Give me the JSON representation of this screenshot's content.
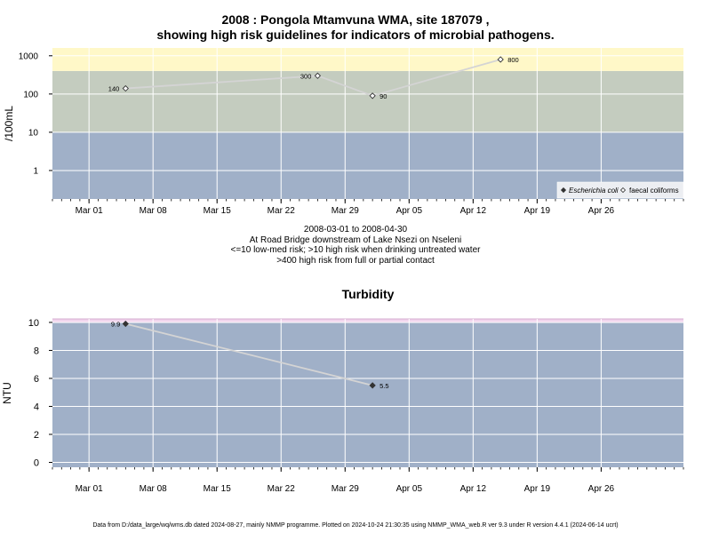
{
  "header": {
    "title_line1": "2008 : Pongola Mtamvuna WMA, site 187079 ,",
    "title_line2": "showing high risk guidelines for indicators of microbial pathogens."
  },
  "microbial_caption": {
    "line1": "2008-03-01 to 2008-04-30",
    "line2": "At Road Bridge downstream of Lake Nsezi on Nseleni",
    "line3": "<=10 low-med risk; >10 high risk when drinking untreated water",
    "line4": ">400 high risk from full or partial contact"
  },
  "footer": {
    "text": "Data from D:/data_large/wq/wms.db dated 2024-08-27, mainly NMMP programme. Plotted on 2024-10-24 21:30:35 using NMMP_WMA_web.R ver 9.3 under R version 4.4.1 (2024-06-14 ucrt)"
  },
  "colors": {
    "band_low": "#a0b0c8",
    "band_high": "#c4ccbf",
    "band_contact": "#fff8c8",
    "turbidity_band": "#a0b0c8",
    "turbidity_top_band": "#f2d6ee",
    "grid": "#ffffff",
    "line": "#d4d4d4"
  },
  "chart_data": [
    {
      "type": "line",
      "ylabel": "/100mL",
      "yscale": "log",
      "ylim": [
        0.18,
        1600
      ],
      "yticks": [
        1,
        10,
        100,
        1000
      ],
      "ytick_labels": [
        "1",
        "10",
        "100",
        "1000"
      ],
      "xlim": [
        "2008-02-26",
        "2008-05-05"
      ],
      "xticks": [
        "2008-03-01",
        "2008-03-08",
        "2008-03-15",
        "2008-03-22",
        "2008-03-29",
        "2008-04-05",
        "2008-04-12",
        "2008-04-19",
        "2008-04-26"
      ],
      "xtick_labels": [
        "Mar 01",
        "Mar 08",
        "Mar 15",
        "Mar 22",
        "Mar 29",
        "Apr 05",
        "Apr 12",
        "Apr 19",
        "Apr 26"
      ],
      "grid": true,
      "risk_bands": [
        {
          "from": 0.18,
          "to": 10
        },
        {
          "from": 10,
          "to": 400
        },
        {
          "from": 400,
          "to": 1600
        }
      ],
      "legend_position": "bottom-right",
      "series": [
        {
          "name": "Escherichia coli",
          "marker": "filled-diamond",
          "x": [],
          "y": []
        },
        {
          "name": "faecal coliforms",
          "marker": "open-diamond",
          "x": [
            "2008-03-05",
            "2008-03-26",
            "2008-04-01",
            "2008-04-15"
          ],
          "y": [
            140,
            300,
            90,
            800
          ],
          "labels": [
            "140",
            "300",
            "90",
            "800"
          ]
        }
      ]
    },
    {
      "type": "line",
      "title": "Turbidity",
      "ylabel": "NTU",
      "ylim": [
        -0.35,
        10.25
      ],
      "yticks": [
        0,
        2,
        4,
        6,
        8,
        10
      ],
      "ytick_labels": [
        "0",
        "2",
        "4",
        "6",
        "8",
        "10"
      ],
      "xlim": [
        "2008-02-26",
        "2008-05-05"
      ],
      "xticks": [
        "2008-03-01",
        "2008-03-08",
        "2008-03-15",
        "2008-03-22",
        "2008-03-29",
        "2008-04-05",
        "2008-04-12",
        "2008-04-19",
        "2008-04-26"
      ],
      "xtick_labels": [
        "Mar 01",
        "Mar 08",
        "Mar 15",
        "Mar 22",
        "Mar 29",
        "Apr 05",
        "Apr 12",
        "Apr 19",
        "Apr 26"
      ],
      "grid": true,
      "guideline_band": {
        "from": 10,
        "to": 10.25
      },
      "series": [
        {
          "name": "",
          "marker": "filled-diamond",
          "x": [
            "2008-03-05",
            "2008-04-01"
          ],
          "y": [
            9.9,
            5.5
          ],
          "labels": [
            "9.9",
            "5.5"
          ]
        }
      ]
    }
  ]
}
